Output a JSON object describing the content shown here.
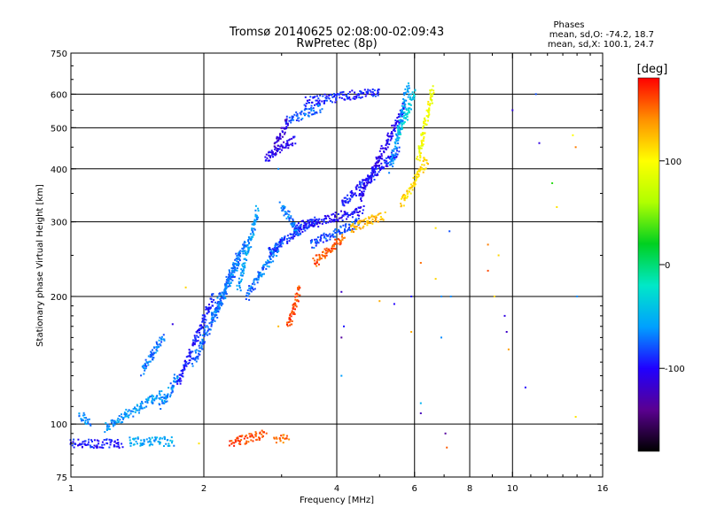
{
  "chart_data": {
    "type": "scatter",
    "title": "Tromsø 20140625 02:08:00-02:09:43",
    "subtitle": "RwPretec (8p)",
    "xlabel": "Frequency [MHz]",
    "ylabel": "Stationary phase Virtual Height [km]",
    "x_scale": "log",
    "y_scale": "log",
    "xlim": [
      1,
      16
    ],
    "ylim": [
      75,
      750
    ],
    "x_ticks": [
      1,
      2,
      4,
      6,
      8,
      10,
      16
    ],
    "x_tick_labels": [
      "1",
      "2",
      "4",
      "6",
      "8",
      "10",
      "16"
    ],
    "y_ticks": [
      75,
      100,
      200,
      300,
      400,
      500,
      600,
      750
    ],
    "y_tick_labels": [
      "75",
      "100",
      "200",
      "300",
      "400",
      "500",
      "600",
      "750"
    ],
    "x_gridlines": [
      2,
      4,
      6,
      8,
      10
    ],
    "y_gridlines": [
      100,
      200,
      300,
      400,
      500,
      600
    ],
    "grid": true,
    "legend": {
      "title": "Phases",
      "line_o": "mean, sd,O: -74.2, 18.7",
      "line_x": "mean, sd,X: 100.1, 24.7"
    },
    "colorbar": {
      "label": "[deg]",
      "range": [
        -180,
        180
      ],
      "ticks": [
        100,
        0,
        -100
      ],
      "tick_labels": [
        "100",
        "0",
        "-100"
      ],
      "colors": [
        "#000000",
        "#5a0090",
        "#2000ff",
        "#00a0ff",
        "#00e8c8",
        "#00d020",
        "#b0ff00",
        "#ffff00",
        "#ff9000",
        "#ff0000"
      ]
    },
    "series": [
      {
        "traces": [
          {
            "f": [
              1.0,
              1.3
            ],
            "h": 90,
            "phase": -95
          },
          {
            "f": [
              1.05,
              1.1
            ],
            "h": [
              105,
              100
            ],
            "phase": -65
          },
          {
            "f": [
              1.2,
              1.6
            ],
            "h": [
              98,
              118
            ],
            "phase": -60
          },
          {
            "f": [
              1.35,
              1.7
            ],
            "h": 91,
            "phase": -55
          },
          {
            "f": [
              1.45,
              1.62
            ],
            "h": [
              133,
              160
            ],
            "phase": -70
          },
          {
            "f": [
              1.6,
              1.75
            ],
            "h": [
              110,
              130
            ],
            "phase": -65
          },
          {
            "f": [
              1.75,
              2.1
            ],
            "h": [
              125,
              200
            ],
            "phase": -95
          },
          {
            "f": [
              1.9,
              2.4
            ],
            "h": [
              140,
              250
            ],
            "phase": -75
          },
          {
            "f": [
              2.1,
              2.5
            ],
            "h": [
              175,
              270
            ],
            "phase": -70
          },
          {
            "f": [
              2.4,
              2.65
            ],
            "h": [
              210,
              320
            ],
            "phase": -60
          },
          {
            "f": [
              2.5,
              3.0
            ],
            "h": [
              200,
              270
            ],
            "phase": -70
          },
          {
            "f": [
              2.8,
              3.6
            ],
            "h": [
              255,
              305
            ],
            "phase": -90
          },
          {
            "f": [
              3.2,
              4.6
            ],
            "h": [
              290,
              320
            ],
            "phase": -100
          },
          {
            "f": [
              3.5,
              4.5
            ],
            "h": [
              265,
              300
            ],
            "phase": -80
          },
          {
            "f": [
              3.0,
              3.3
            ],
            "h": [
              330,
              280
            ],
            "phase": -70
          },
          {
            "f": [
              2.75,
              3.2
            ],
            "h": [
              420,
              470
            ],
            "phase": -105
          },
          {
            "f": [
              2.9,
              3.1
            ],
            "h": [
              450,
              520
            ],
            "phase": -115
          },
          {
            "f": [
              3.1,
              3.7
            ],
            "h": [
              520,
              560
            ],
            "phase": -75
          },
          {
            "f": [
              3.4,
              5.0
            ],
            "h": [
              575,
              610
            ],
            "phase": -90
          },
          {
            "f": [
              4.1,
              5.5
            ],
            "h": [
              330,
              440
            ],
            "phase": -95
          },
          {
            "f": [
              4.5,
              5.7
            ],
            "h": [
              340,
              560
            ],
            "phase": -105
          },
          {
            "f": [
              5.3,
              5.8
            ],
            "h": [
              400,
              630
            ],
            "phase": -60
          },
          {
            "f": [
              5.5,
              6.0
            ],
            "h": [
              480,
              600
            ],
            "phase": -35
          },
          {
            "f": [
              5.6,
              6.4
            ],
            "h": [
              330,
              420
            ],
            "phase": 115
          },
          {
            "f": [
              4.3,
              5.1
            ],
            "h": [
              290,
              310
            ],
            "phase": 125
          },
          {
            "f": [
              6.1,
              6.6
            ],
            "h": [
              420,
              620
            ],
            "phase": 95
          },
          {
            "f": [
              3.55,
              4.15
            ],
            "h": [
              240,
              275
            ],
            "phase": 155
          },
          {
            "f": [
              3.1,
              3.3
            ],
            "h": [
              170,
              210
            ],
            "phase": 160
          },
          {
            "f": [
              2.3,
              2.75
            ],
            "h": [
              90,
              95
            ],
            "phase": 160
          },
          {
            "f": [
              2.9,
              3.1
            ],
            "h": 92,
            "phase": 150
          }
        ],
        "scatter": [
          {
            "f": 1.82,
            "h": 210,
            "phase": 115
          },
          {
            "f": 1.7,
            "h": 172,
            "phase": -110
          },
          {
            "f": 1.95,
            "h": 90,
            "phase": 110
          },
          {
            "f": 2.95,
            "h": 170,
            "phase": 125
          },
          {
            "f": 2.95,
            "h": 400,
            "phase": -65
          },
          {
            "f": 3.4,
            "h": 590,
            "phase": -95
          },
          {
            "f": 4.1,
            "h": 130,
            "phase": -60
          },
          {
            "f": 4.1,
            "h": 160,
            "phase": -135
          },
          {
            "f": 4.1,
            "h": 205,
            "phase": -120
          },
          {
            "f": 4.15,
            "h": 170,
            "phase": -95
          },
          {
            "f": 5.0,
            "h": 195,
            "phase": 130
          },
          {
            "f": 5.4,
            "h": 192,
            "phase": -100
          },
          {
            "f": 5.9,
            "h": 165,
            "phase": 130
          },
          {
            "f": 5.9,
            "h": 200,
            "phase": -95
          },
          {
            "f": 6.2,
            "h": 240,
            "phase": 150
          },
          {
            "f": 6.2,
            "h": 112,
            "phase": -50
          },
          {
            "f": 6.2,
            "h": 106,
            "phase": -125
          },
          {
            "f": 6.7,
            "h": 220,
            "phase": 115
          },
          {
            "f": 6.7,
            "h": 290,
            "phase": 110
          },
          {
            "f": 6.9,
            "h": 200,
            "phase": -65
          },
          {
            "f": 6.9,
            "h": 160,
            "phase": -65
          },
          {
            "f": 7.2,
            "h": 285,
            "phase": -80
          },
          {
            "f": 7.25,
            "h": 200,
            "phase": -65
          },
          {
            "f": 7.05,
            "h": 95,
            "phase": -135
          },
          {
            "f": 7.1,
            "h": 88,
            "phase": 155
          },
          {
            "f": 8.8,
            "h": 265,
            "phase": 145
          },
          {
            "f": 8.8,
            "h": 230,
            "phase": 160
          },
          {
            "f": 9.1,
            "h": 200,
            "phase": 115
          },
          {
            "f": 9.3,
            "h": 250,
            "phase": 115
          },
          {
            "f": 9.6,
            "h": 180,
            "phase": -110
          },
          {
            "f": 9.7,
            "h": 165,
            "phase": -120
          },
          {
            "f": 9.8,
            "h": 150,
            "phase": 135
          },
          {
            "f": 10.0,
            "h": 550,
            "phase": -110
          },
          {
            "f": 10.7,
            "h": 122,
            "phase": -100
          },
          {
            "f": 11.3,
            "h": 600,
            "phase": -80
          },
          {
            "f": 11.5,
            "h": 460,
            "phase": -110
          },
          {
            "f": 12.3,
            "h": 370,
            "phase": 30
          },
          {
            "f": 12.6,
            "h": 325,
            "phase": 110
          },
          {
            "f": 13.7,
            "h": 480,
            "phase": 100
          },
          {
            "f": 13.9,
            "h": 450,
            "phase": 145
          },
          {
            "f": 14.0,
            "h": 200,
            "phase": -65
          },
          {
            "f": 13.9,
            "h": 104,
            "phase": 110
          }
        ]
      }
    ]
  }
}
